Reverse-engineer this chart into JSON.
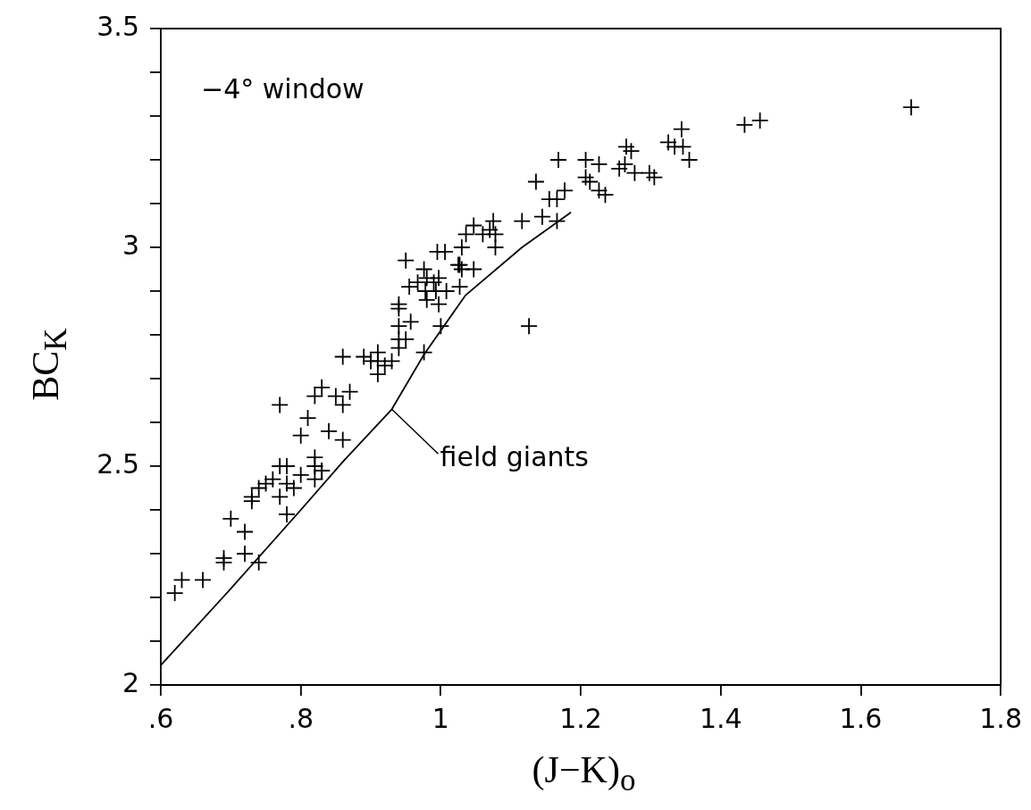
{
  "chart_data": {
    "type": "scatter",
    "xlabel": "(J−K)$_{o}$",
    "ylabel": "BC$_{K}$",
    "annotations": [
      "−4° window",
      {
        "text": "field giants",
        "x": 0.93,
        "y": 2.63
      }
    ],
    "xlim": [
      0.6,
      1.8
    ],
    "xticks": [
      {
        "value": 0.6,
        "label": ".6"
      },
      {
        "value": 0.8,
        "label": ".8"
      },
      1,
      1.2,
      1.4,
      1.6,
      1.8
    ],
    "ylim": [
      2,
      3.5
    ],
    "yticks": [
      2,
      {
        "value": 2.1,
        "label": null
      },
      {
        "value": 2.2,
        "label": null
      },
      {
        "value": 2.3,
        "label": null
      },
      {
        "value": 2.4,
        "label": null
      },
      2.5,
      {
        "value": 2.6,
        "label": null
      },
      {
        "value": 2.7,
        "label": null
      },
      {
        "value": 2.8,
        "label": null
      },
      {
        "value": 2.9,
        "label": null
      },
      3,
      {
        "value": 3.1,
        "label": null
      },
      {
        "value": 3.2,
        "label": null
      },
      {
        "value": 3.3,
        "label": null
      },
      {
        "value": 3.4,
        "label": null
      },
      3.5
    ],
    "grid": false,
    "legend": false,
    "marker": "cross",
    "series": [
      {
        "type": "scatter",
        "color": "#000000",
        "x": [
          0.62,
          0.63,
          0.66,
          0.69,
          0.69,
          0.7,
          0.72,
          0.72,
          0.74,
          0.73,
          0.73,
          0.74,
          0.75,
          0.76,
          0.77,
          0.77,
          0.78,
          0.78,
          0.78,
          0.79,
          0.8,
          0.8,
          0.77,
          0.81,
          0.82,
          0.82,
          0.82,
          0.82,
          0.83,
          0.83,
          0.83,
          0.84,
          0.85,
          0.86,
          0.86,
          0.87,
          0.86,
          0.89,
          0.9,
          0.91,
          0.91,
          0.91,
          0.92,
          0.94,
          0.94,
          0.94,
          0.94,
          0.93,
          0.95,
          0.955,
          0.957,
          0.95,
          0.94,
          1.0,
          0.976,
          0.976,
          0.995,
          1.006,
          0.967,
          0.98,
          0.99,
          0.997,
          0.978,
          0.993,
          1.008,
          0.98,
          0.997,
          1.025,
          1.027,
          1.03,
          1.047,
          1.027,
          1.03,
          1.036,
          1.047,
          1.06,
          1.075,
          1.078,
          1.078,
          1.07,
          1.116,
          1.145,
          1.136,
          1.155,
          1.166,
          1.177,
          1.166,
          1.126,
          1.168,
          1.207,
          1.226,
          1.207,
          1.213,
          1.226,
          1.235,
          1.265,
          1.272,
          1.263,
          1.255,
          1.277,
          1.298,
          1.305,
          1.325,
          1.334,
          1.346,
          1.344,
          1.355,
          1.434,
          1.456,
          1.672
        ],
        "values": [
          2.21,
          2.24,
          2.24,
          2.28,
          2.29,
          2.38,
          2.35,
          2.3,
          2.28,
          2.42,
          2.43,
          2.45,
          2.46,
          2.47,
          2.5,
          2.43,
          2.39,
          2.46,
          2.5,
          2.45,
          2.48,
          2.57,
          2.64,
          2.61,
          2.66,
          2.52,
          2.5,
          2.47,
          2.68,
          2.49,
          2.49,
          2.58,
          2.66,
          2.64,
          2.75,
          2.67,
          2.56,
          2.75,
          2.74,
          2.71,
          2.76,
          2.74,
          2.73,
          2.79,
          2.82,
          2.86,
          2.87,
          2.74,
          2.97,
          2.91,
          2.83,
          2.79,
          2.77,
          2.82,
          2.76,
          2.95,
          2.99,
          2.99,
          2.92,
          2.93,
          2.92,
          2.93,
          2.9,
          2.9,
          2.9,
          2.88,
          2.87,
          2.96,
          2.96,
          2.95,
          2.95,
          2.91,
          3.0,
          3.03,
          3.05,
          3.03,
          3.06,
          3.03,
          3.0,
          3.04,
          3.06,
          3.07,
          3.15,
          3.11,
          3.11,
          3.13,
          3.06,
          2.82,
          3.2,
          3.2,
          3.19,
          3.16,
          3.15,
          3.13,
          3.12,
          3.23,
          3.22,
          3.19,
          3.18,
          3.17,
          3.17,
          3.16,
          3.24,
          3.23,
          3.23,
          3.27,
          3.2,
          3.28,
          3.29,
          3.32
        ]
      },
      {
        "type": "line",
        "color": "#000000",
        "marker": "none",
        "x": [
          0.6,
          0.7,
          0.8,
          0.86,
          0.93,
          0.976,
          1.035,
          1.116,
          1.186
        ],
        "values": [
          2.045,
          2.22,
          2.4,
          2.51,
          2.63,
          2.755,
          2.89,
          3.0,
          3.08
        ]
      }
    ]
  }
}
